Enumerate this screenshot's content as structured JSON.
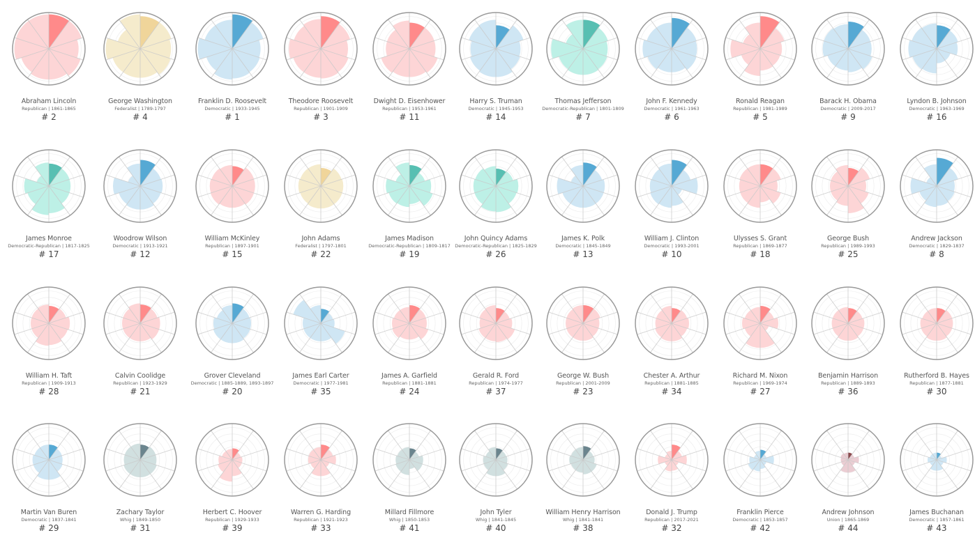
{
  "chart_data": {
    "type": "polar-area",
    "sectors_per_chart": 10,
    "radial_range": [
      0,
      1
    ],
    "grid": true,
    "party_colors": {
      "Republican": {
        "light": "#fdd5d6",
        "dark": "#ff8a8a"
      },
      "Democratic": {
        "light": "#cfe6f4",
        "dark": "#56a9d4"
      },
      "Federalist": {
        "light": "#f5ebcc",
        "dark": "#f0d59a"
      },
      "Democratic-Republican": {
        "light": "#bdf0e6",
        "dark": "#57bfb2"
      },
      "Whig": {
        "light": "#d1e0e0",
        "dark": "#6b858e"
      },
      "Union": {
        "light": "#ebcdd3",
        "dark": "#8b4a4e"
      }
    },
    "presidents": [
      {
        "name": "Abraham Lincoln",
        "party": "Republican",
        "years": "1861-1865",
        "rank": "# 2",
        "values": [
          0.95,
          0.95,
          0.82,
          0.92,
          0.85,
          0.85,
          0.8,
          0.95,
          0.95,
          0.95
        ]
      },
      {
        "name": "George Washington",
        "party": "Federalist",
        "years": "1789-1797",
        "rank": "# 4",
        "values": [
          0.9,
          0.9,
          0.85,
          0.88,
          0.8,
          0.8,
          0.8,
          0.95,
          0.65,
          0.95
        ]
      },
      {
        "name": "Franklin D. Roosevelt",
        "party": "Democratic",
        "years": "1933-1945",
        "rank": "# 1",
        "values": [
          0.95,
          0.9,
          0.78,
          0.8,
          0.82,
          0.85,
          0.75,
          0.95,
          0.8,
          0.8
        ]
      },
      {
        "name": "Theodore Roosevelt",
        "party": "Republican",
        "years": "1901-1909",
        "rank": "# 3",
        "values": [
          0.9,
          0.85,
          0.75,
          0.8,
          0.82,
          0.8,
          0.8,
          0.88,
          0.78,
          0.82
        ]
      },
      {
        "name": "Dwight D. Eisenhower",
        "party": "Republican",
        "years": "1953-1961",
        "rank": "# 11",
        "values": [
          0.72,
          0.72,
          0.72,
          0.82,
          0.78,
          0.78,
          0.82,
          0.65,
          0.65,
          0.78
        ]
      },
      {
        "name": "Harry S. Truman",
        "party": "Democratic",
        "years": "1945-1953",
        "rank": "# 14",
        "values": [
          0.65,
          0.8,
          0.68,
          0.7,
          0.78,
          0.78,
          0.75,
          0.7,
          0.78,
          0.8
        ]
      },
      {
        "name": "Thomas Jefferson",
        "party": "Democratic-Republican",
        "years": "1801-1809",
        "rank": "# 7",
        "values": [
          0.8,
          0.72,
          0.68,
          0.7,
          0.72,
          0.72,
          0.7,
          0.88,
          0.5,
          0.8
        ]
      },
      {
        "name": "John F. Kennedy",
        "party": "Democratic",
        "years": "1961-1963",
        "rank": "# 6",
        "values": [
          0.85,
          0.72,
          0.7,
          0.72,
          0.65,
          0.65,
          0.7,
          0.8,
          0.72,
          0.72
        ]
      },
      {
        "name": "Ronald Reagan",
        "party": "Republican",
        "years": "1981-1989",
        "rank": "# 5",
        "values": [
          0.9,
          0.7,
          0.6,
          0.58,
          0.6,
          0.75,
          0.55,
          0.82,
          0.5,
          0.72
        ]
      },
      {
        "name": "Barack H. Obama",
        "party": "Democratic",
        "years": "2009-2017",
        "rank": "# 9",
        "values": [
          0.75,
          0.65,
          0.65,
          0.7,
          0.65,
          0.6,
          0.6,
          0.7,
          0.7,
          0.68
        ]
      },
      {
        "name": "Lyndon B. Johnson",
        "party": "Democratic",
        "years": "1963-1969",
        "rank": "# 16",
        "values": [
          0.65,
          0.62,
          0.58,
          0.4,
          0.4,
          0.68,
          0.7,
          0.78,
          0.72,
          0.7
        ]
      },
      {
        "name": "James Monroe",
        "party": "Democratic-Republican",
        "years": "1817-1825",
        "rank": "# 17",
        "values": [
          0.62,
          0.6,
          0.6,
          0.6,
          0.75,
          0.8,
          0.62,
          0.68,
          0.35,
          0.65
        ]
      },
      {
        "name": "Woodrow Wilson",
        "party": "Democratic",
        "years": "1913-1921",
        "rank": "# 12",
        "values": [
          0.72,
          0.6,
          0.62,
          0.6,
          0.65,
          0.65,
          0.62,
          0.75,
          0.35,
          0.62
        ]
      },
      {
        "name": "William McKinley",
        "party": "Republican",
        "years": "1897-1901",
        "rank": "# 15",
        "values": [
          0.55,
          0.63,
          0.63,
          0.63,
          0.6,
          0.6,
          0.63,
          0.62,
          0.6,
          0.58
        ]
      },
      {
        "name": "John Adams",
        "party": "Federalist",
        "years": "1797-1801",
        "rank": "# 22",
        "values": [
          0.5,
          0.6,
          0.62,
          0.62,
          0.62,
          0.62,
          0.6,
          0.62,
          0.6,
          0.6
        ]
      },
      {
        "name": "James Madison",
        "party": "Democratic-Republican",
        "years": "1809-1817",
        "rank": "# 19",
        "values": [
          0.58,
          0.45,
          0.6,
          0.68,
          0.5,
          0.58,
          0.6,
          0.65,
          0.4,
          0.65
        ]
      },
      {
        "name": "John Quincy Adams",
        "party": "Democratic-Republican",
        "years": "1825-1829",
        "rank": "# 26",
        "values": [
          0.48,
          0.5,
          0.62,
          0.6,
          0.72,
          0.7,
          0.62,
          0.62,
          0.6,
          0.55
        ]
      },
      {
        "name": "James K. Polk",
        "party": "Democratic",
        "years": "1845-1849",
        "rank": "# 13",
        "values": [
          0.65,
          0.55,
          0.6,
          0.6,
          0.6,
          0.6,
          0.6,
          0.72,
          0.35,
          0.58
        ]
      },
      {
        "name": "William J. Clinton",
        "party": "Democratic",
        "years": "1993-2001",
        "rank": "# 10",
        "values": [
          0.72,
          0.55,
          0.72,
          0.3,
          0.55,
          0.6,
          0.62,
          0.6,
          0.58,
          0.62
        ]
      },
      {
        "name": "Ulysses S. Grant",
        "party": "Republican",
        "years": "1869-1877",
        "rank": "# 18",
        "values": [
          0.6,
          0.6,
          0.48,
          0.6,
          0.45,
          0.6,
          0.58,
          0.58,
          0.6,
          0.6
        ]
      },
      {
        "name": "George Bush",
        "party": "Republican",
        "years": "1989-1993",
        "rank": "# 25",
        "values": [
          0.5,
          0.63,
          0.5,
          0.6,
          0.75,
          0.55,
          0.5,
          0.5,
          0.5,
          0.58
        ]
      },
      {
        "name": "Andrew Jackson",
        "party": "Democratic",
        "years": "1829-1837",
        "rank": "# 8",
        "values": [
          0.78,
          0.62,
          0.5,
          0.52,
          0.55,
          0.58,
          0.5,
          0.72,
          0.3,
          0.6
        ]
      },
      {
        "name": "William H. Taft",
        "party": "Republican",
        "years": "1909-1913",
        "rank": "# 28",
        "values": [
          0.48,
          0.5,
          0.58,
          0.55,
          0.6,
          0.62,
          0.5,
          0.5,
          0.5,
          0.52
        ]
      },
      {
        "name": "Calvin Coolidge",
        "party": "Republican",
        "years": "1923-1929",
        "rank": "# 21",
        "values": [
          0.52,
          0.5,
          0.55,
          0.55,
          0.5,
          0.5,
          0.5,
          0.5,
          0.5,
          0.55
        ]
      },
      {
        "name": "Grover Cleveland",
        "party": "Democratic",
        "years": "1885-1889, 1893-1897",
        "rank": "# 20",
        "values": [
          0.55,
          0.5,
          0.52,
          0.52,
          0.55,
          0.55,
          0.55,
          0.52,
          0.45,
          0.5
        ]
      },
      {
        "name": "James Earl Carter",
        "party": "Democratic",
        "years": "1977-1981",
        "rank": "# 35",
        "values": [
          0.4,
          0.35,
          0.38,
          0.7,
          0.5,
          0.5,
          0.5,
          0.5,
          0.8,
          0.5
        ]
      },
      {
        "name": "James A. Garfield",
        "party": "Republican",
        "years": "1881-1881",
        "rank": "# 24",
        "values": [
          0.5,
          0.48,
          0.48,
          0.55,
          0.45,
          0.45,
          0.5,
          0.48,
          0.45,
          0.45
        ]
      },
      {
        "name": "Gerald R. Ford",
        "party": "Republican",
        "years": "1974-1977",
        "rank": "# 37",
        "values": [
          0.42,
          0.4,
          0.45,
          0.55,
          0.52,
          0.5,
          0.5,
          0.45,
          0.48,
          0.5
        ]
      },
      {
        "name": "George W. Bush",
        "party": "Republican",
        "years": "2001-2009",
        "rank": "# 23",
        "values": [
          0.5,
          0.5,
          0.45,
          0.45,
          0.48,
          0.48,
          0.48,
          0.48,
          0.48,
          0.5
        ]
      },
      {
        "name": "Chester A. Arthur",
        "party": "Republican",
        "years": "1881-1885",
        "rank": "# 34",
        "values": [
          0.42,
          0.45,
          0.48,
          0.45,
          0.5,
          0.5,
          0.48,
          0.45,
          0.45,
          0.48
        ]
      },
      {
        "name": "Richard M. Nixon",
        "party": "Republican",
        "years": "1969-1974",
        "rank": "# 27",
        "values": [
          0.48,
          0.4,
          0.5,
          0.25,
          0.68,
          0.68,
          0.45,
          0.5,
          0.45,
          0.45
        ]
      },
      {
        "name": "Benjamin Harrison",
        "party": "Republican",
        "years": "1889-1893",
        "rank": "# 36",
        "values": [
          0.42,
          0.42,
          0.45,
          0.45,
          0.48,
          0.48,
          0.45,
          0.45,
          0.45,
          0.45
        ]
      },
      {
        "name": "Rutherford B. Hayes",
        "party": "Republican",
        "years": "1877-1881",
        "rank": "# 30",
        "values": [
          0.42,
          0.45,
          0.45,
          0.45,
          0.48,
          0.48,
          0.45,
          0.45,
          0.42,
          0.42
        ]
      },
      {
        "name": "Martin Van Buren",
        "party": "Democratic",
        "years": "1837-1841",
        "rank": "# 29",
        "values": [
          0.42,
          0.38,
          0.38,
          0.4,
          0.55,
          0.55,
          0.45,
          0.45,
          0.42,
          0.42
        ]
      },
      {
        "name": "Zachary Taylor",
        "party": "Whig",
        "years": "1849-1850",
        "rank": "# 31",
        "values": [
          0.42,
          0.45,
          0.45,
          0.48,
          0.48,
          0.48,
          0.48,
          0.45,
          0.45,
          0.45
        ]
      },
      {
        "name": "Herbert C. Hoover",
        "party": "Republican",
        "years": "1929-1933",
        "rank": "# 39",
        "values": [
          0.32,
          0.25,
          0.28,
          0.28,
          0.45,
          0.6,
          0.42,
          0.38,
          0.3,
          0.3
        ]
      },
      {
        "name": "Warren G. Harding",
        "party": "Republican",
        "years": "1921-1923",
        "rank": "# 33",
        "values": [
          0.42,
          0.35,
          0.42,
          0.25,
          0.45,
          0.45,
          0.3,
          0.35,
          0.35,
          0.35
        ]
      },
      {
        "name": "Millard Fillmore",
        "party": "Whig",
        "years": "1850-1853",
        "rank": "# 41",
        "values": [
          0.32,
          0.28,
          0.38,
          0.38,
          0.25,
          0.42,
          0.4,
          0.38,
          0.35,
          0.35
        ]
      },
      {
        "name": "John Tyler",
        "party": "Whig",
        "years": "1841-1845",
        "rank": "# 40",
        "values": [
          0.32,
          0.3,
          0.32,
          0.35,
          0.45,
          0.45,
          0.35,
          0.35,
          0.3,
          0.35
        ]
      },
      {
        "name": "William Henry Harrison",
        "party": "Whig",
        "years": "1841-1841",
        "rank": "# 38",
        "values": [
          0.38,
          0.3,
          0.32,
          0.4,
          0.4,
          0.35,
          0.35,
          0.38,
          0.35,
          0.35
        ]
      },
      {
        "name": "Donald J. Trump",
        "party": "Republican",
        "years": "2017-2021",
        "rank": "# 32",
        "values": [
          0.42,
          0.3,
          0.42,
          0.2,
          0.3,
          0.32,
          0.2,
          0.38,
          0.2,
          0.25
        ]
      },
      {
        "name": "Franklin Pierce",
        "party": "Democratic",
        "years": "1853-1857",
        "rank": "# 42",
        "values": [
          0.28,
          0.18,
          0.38,
          0.18,
          0.25,
          0.32,
          0.35,
          0.3,
          0.18,
          0.25
        ]
      },
      {
        "name": "Andrew Johnson",
        "party": "Union",
        "years": "1865-1869",
        "rank": "# 44",
        "values": [
          0.2,
          0.18,
          0.3,
          0.2,
          0.35,
          0.35,
          0.2,
          0.2,
          0.22,
          0.2
        ]
      },
      {
        "name": "James Buchanan",
        "party": "Democratic",
        "years": "1857-1861",
        "rank": "# 43",
        "values": [
          0.2,
          0.15,
          0.28,
          0.2,
          0.3,
          0.3,
          0.2,
          0.25,
          0.2,
          0.2
        ]
      }
    ]
  }
}
